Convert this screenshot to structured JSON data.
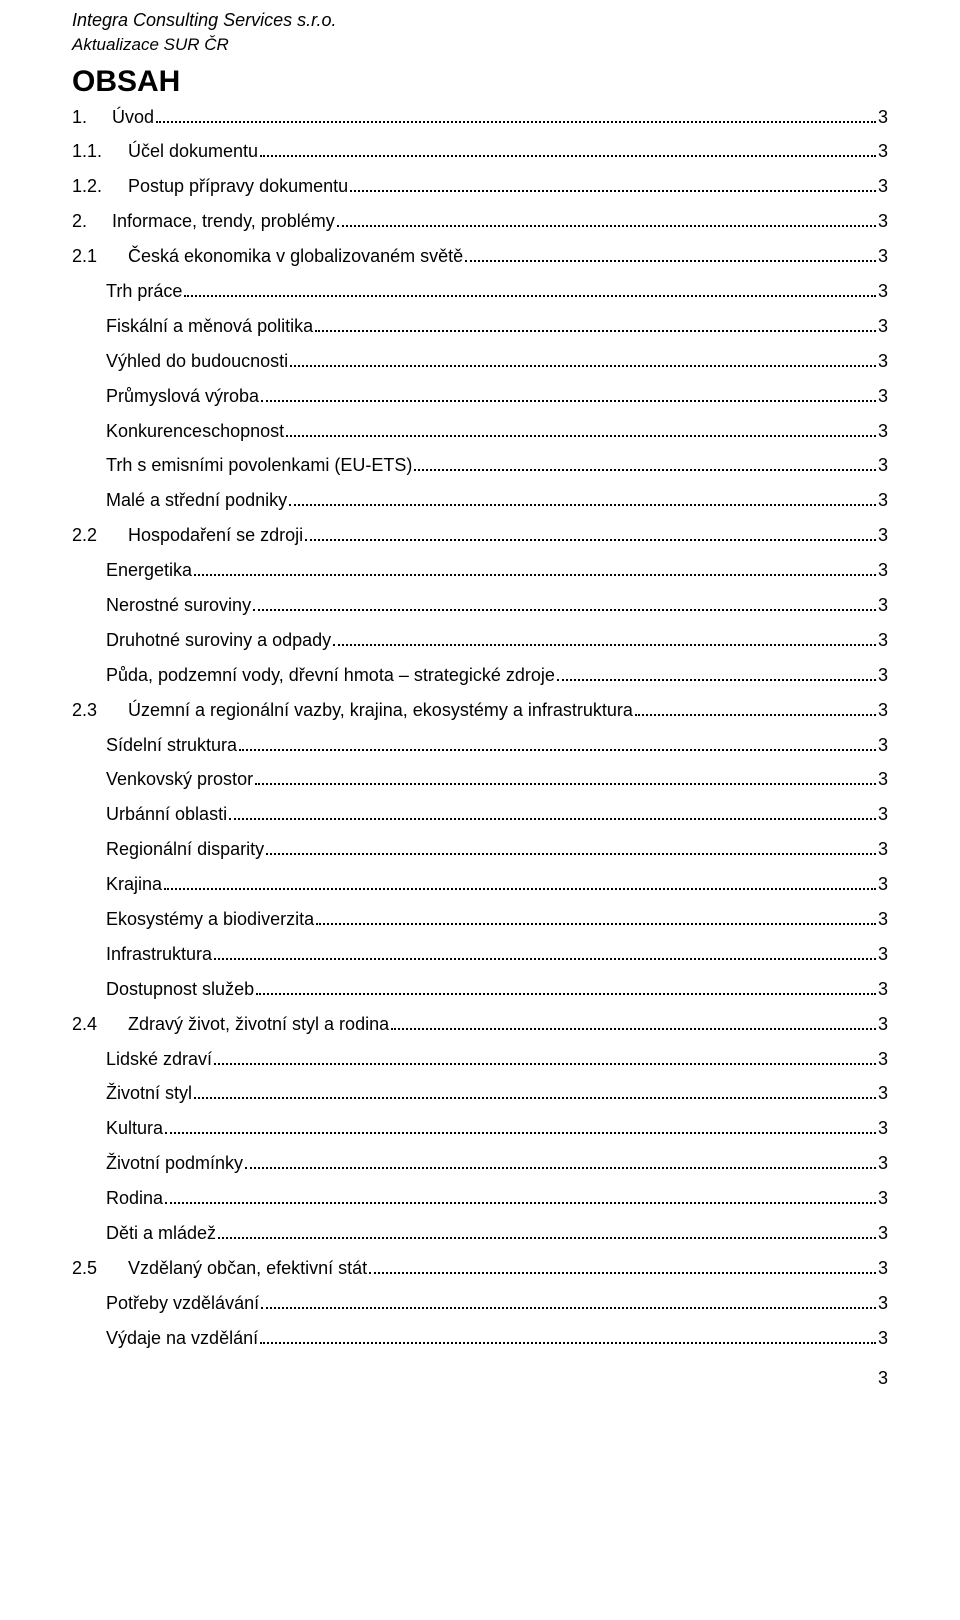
{
  "header": {
    "company": "Integra Consulting Services s.r.o.",
    "subtitle": "Aktualizace SUR ČR"
  },
  "title": "OBSAH",
  "page_number": "3",
  "toc": [
    {
      "num": "1.",
      "num_class": "level1",
      "label": "Úvod",
      "page": "3",
      "indent": false
    },
    {
      "num": "1.1.",
      "num_class": "level1b",
      "label": "Účel dokumentu",
      "page": "3",
      "indent": false
    },
    {
      "num": "1.2.",
      "num_class": "level1b",
      "label": "Postup přípravy dokumentu",
      "page": "3",
      "indent": false
    },
    {
      "num": "2.",
      "num_class": "level1",
      "label": "Informace, trendy, problémy",
      "page": "3",
      "indent": false
    },
    {
      "num": "2.1",
      "num_class": "level2",
      "label": "Česká ekonomika v globalizovaném světě",
      "page": "3",
      "indent": false
    },
    {
      "num": "",
      "num_class": "",
      "label": "Trh práce",
      "page": "3",
      "indent": true
    },
    {
      "num": "",
      "num_class": "",
      "label": "Fiskální a měnová  politika",
      "page": "3",
      "indent": true
    },
    {
      "num": "",
      "num_class": "",
      "label": "Výhled do budoucnosti",
      "page": "3",
      "indent": true
    },
    {
      "num": "",
      "num_class": "",
      "label": "Průmyslová výroba",
      "page": "3",
      "indent": true
    },
    {
      "num": "",
      "num_class": "",
      "label": "Konkurenceschopnost",
      "page": "3",
      "indent": true
    },
    {
      "num": "",
      "num_class": "",
      "label": "Trh s emisními povolenkami (EU-ETS)",
      "page": "3",
      "indent": true
    },
    {
      "num": "",
      "num_class": "",
      "label": "Malé a střední podniky",
      "page": "3",
      "indent": true
    },
    {
      "num": "2.2",
      "num_class": "level2",
      "label": "Hospodaření se zdroji",
      "page": "3",
      "indent": false
    },
    {
      "num": "",
      "num_class": "",
      "label": "Energetika",
      "page": "3",
      "indent": true
    },
    {
      "num": "",
      "num_class": "",
      "label": "Nerostné suroviny",
      "page": "3",
      "indent": true
    },
    {
      "num": "",
      "num_class": "",
      "label": "Druhotné suroviny a odpady",
      "page": "3",
      "indent": true
    },
    {
      "num": "",
      "num_class": "",
      "label": "Půda, podzemní vody, dřevní hmota – strategické zdroje",
      "page": "3",
      "indent": true
    },
    {
      "num": "2.3",
      "num_class": "level2",
      "label": "Územní a regionální vazby, krajina, ekosystémy a infrastruktura",
      "page": "3",
      "indent": false
    },
    {
      "num": "",
      "num_class": "",
      "label": "Sídelní struktura",
      "page": "3",
      "indent": true
    },
    {
      "num": "",
      "num_class": "",
      "label": "Venkovský prostor",
      "page": "3",
      "indent": true
    },
    {
      "num": "",
      "num_class": "",
      "label": "Urbánní oblasti",
      "page": "3",
      "indent": true
    },
    {
      "num": "",
      "num_class": "",
      "label": "Regionální disparity",
      "page": "3",
      "indent": true
    },
    {
      "num": "",
      "num_class": "",
      "label": "Krajina",
      "page": "3",
      "indent": true
    },
    {
      "num": "",
      "num_class": "",
      "label": "Ekosystémy a biodiverzita",
      "page": "3",
      "indent": true
    },
    {
      "num": "",
      "num_class": "",
      "label": "Infrastruktura",
      "page": "3",
      "indent": true
    },
    {
      "num": "",
      "num_class": "",
      "label": "Dostupnost služeb",
      "page": "3",
      "indent": true
    },
    {
      "num": "2.4",
      "num_class": "level2",
      "label": "Zdravý život, životní styl a rodina",
      "page": "3",
      "indent": false
    },
    {
      "num": "",
      "num_class": "",
      "label": "Lidské zdraví",
      "page": "3",
      "indent": true
    },
    {
      "num": "",
      "num_class": "",
      "label": "Životní styl",
      "page": "3",
      "indent": true
    },
    {
      "num": "",
      "num_class": "",
      "label": "Kultura",
      "page": "3",
      "indent": true
    },
    {
      "num": "",
      "num_class": "",
      "label": "Životní podmínky",
      "page": "3",
      "indent": true
    },
    {
      "num": "",
      "num_class": "",
      "label": "Rodina",
      "page": "3",
      "indent": true
    },
    {
      "num": "",
      "num_class": "",
      "label": "Děti a mládež",
      "page": "3",
      "indent": true
    },
    {
      "num": "2.5",
      "num_class": "level2",
      "label": "Vzdělaný občan, efektivní stát",
      "page": "3",
      "indent": false
    },
    {
      "num": "",
      "num_class": "",
      "label": "Potřeby vzdělávání",
      "page": "3",
      "indent": true
    },
    {
      "num": "",
      "num_class": "",
      "label": "Výdaje na vzdělání",
      "page": "3",
      "indent": true
    }
  ]
}
